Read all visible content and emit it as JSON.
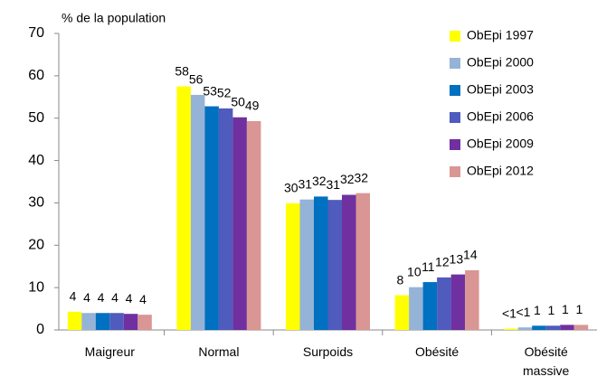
{
  "chart_data": {
    "type": "bar",
    "y_label": "% de la population",
    "categories": [
      "Maigreur",
      "Normal",
      "Surpoids",
      "Obésité",
      "Obésité massive"
    ],
    "series": [
      {
        "name": "ObEpi 1997",
        "color": "#ffff00",
        "values": [
          4.3,
          57.5,
          29.9,
          8.2,
          0.3
        ],
        "value_labels": [
          "4",
          "58",
          "30",
          "8",
          "<1"
        ]
      },
      {
        "name": "ObEpi 2000",
        "color": "#95b3d7",
        "values": [
          4.0,
          55.5,
          30.8,
          10.1,
          0.6
        ],
        "value_labels": [
          "4",
          "56",
          "31",
          "10",
          "<1"
        ]
      },
      {
        "name": "ObEpi 2003",
        "color": "#0070c0",
        "values": [
          4.0,
          52.8,
          31.5,
          11.3,
          1.0
        ],
        "value_labels": [
          "4",
          "53",
          "32",
          "11",
          "1"
        ]
      },
      {
        "name": "ObEpi 2006",
        "color": "#4f5bbd",
        "values": [
          4.0,
          52.3,
          30.7,
          12.4,
          1.0
        ],
        "value_labels": [
          "4",
          "52",
          "31",
          "12",
          "1"
        ]
      },
      {
        "name": "ObEpi 2009",
        "color": "#7030a0",
        "values": [
          3.8,
          50.2,
          31.9,
          13.1,
          1.2
        ],
        "value_labels": [
          "4",
          "50",
          "32",
          "13",
          "1"
        ]
      },
      {
        "name": "ObEpi 2012",
        "color": "#d99694",
        "values": [
          3.6,
          49.3,
          32.3,
          14.1,
          1.2
        ],
        "value_labels": [
          "4",
          "49",
          "32",
          "14",
          "1"
        ]
      }
    ],
    "ylim": [
      0,
      70
    ],
    "yticks": [
      0,
      10,
      20,
      30,
      40,
      50,
      60,
      70
    ],
    "grid": false,
    "legend": "top-right"
  }
}
